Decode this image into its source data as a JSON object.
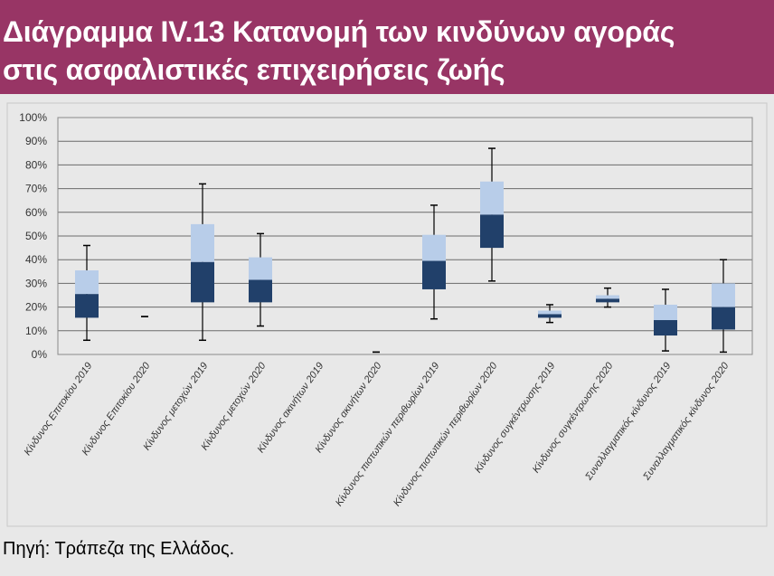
{
  "title": {
    "line1": "Διάγραμμα IV.13 Κατανομή των κινδύνων αγοράς",
    "line2": "στις ασφαλιστικές επιχειρήσεις ζωής"
  },
  "source": "Πηγή: Τράπεζα της Ελλάδος.",
  "colors": {
    "title_band": "#983565",
    "upper_box": "#b8cde9",
    "lower_box": "#21406a",
    "whisker": "#000000",
    "grid": "#6b6b6b",
    "plot_border": "#8a8a8a"
  },
  "chart_data": {
    "type": "boxplot",
    "ylim": [
      0,
      100
    ],
    "yticks": [
      "0%",
      "10%",
      "20%",
      "30%",
      "40%",
      "50%",
      "60%",
      "70%",
      "80%",
      "90%",
      "100%"
    ],
    "grid": true,
    "categories": [
      "Κίνδυνος Επιτοκίου 2019",
      "Κίνδυνος Επιτοκίου 2020",
      "Κίνδυνος μετοχών 2019",
      "Κίνδυνος μετοχών 2020",
      "Κίνδυνος ακινήτων 2019",
      "Κίνδυνος ακινήτων 2020",
      "Κίνδυνος πιστωτικών περιθωρίων 2019",
      "Κίνδυνος πιστωτικών περιθωρίων 2020",
      "Κίνδυνος συγκέντρωσης 2019",
      "Κίνδυνος συγκέντρωσης 2020",
      "Συναλλαγματικός κίνδυνος 2019",
      "Συναλλαγματικός κίνδυνος 2020"
    ],
    "boxes": [
      {
        "min": 6,
        "q1": 15.5,
        "median": 25.5,
        "q3": 35.5,
        "max": 46
      },
      {
        "min": 16,
        "q1": 16,
        "median": 16,
        "q3": 16,
        "max": 16
      },
      {
        "min": 6,
        "q1": 22,
        "median": 39,
        "q3": 55,
        "max": 72
      },
      {
        "min": 12,
        "q1": 22,
        "median": 31.5,
        "q3": 41,
        "max": 51
      },
      null,
      {
        "min": 1,
        "q1": 1,
        "median": 1,
        "q3": 1,
        "max": 1
      },
      {
        "min": 15,
        "q1": 27.5,
        "median": 39.5,
        "q3": 50.5,
        "max": 63
      },
      {
        "min": 31,
        "q1": 45,
        "median": 59,
        "q3": 73,
        "max": 87
      },
      {
        "min": 13.5,
        "q1": 15.5,
        "median": 17,
        "q3": 18.5,
        "max": 21
      },
      {
        "min": 20,
        "q1": 22,
        "median": 23.5,
        "q3": 25,
        "max": 28
      },
      {
        "min": 1.5,
        "q1": 8,
        "median": 14.5,
        "q3": 21,
        "max": 27.5
      },
      {
        "min": 1,
        "q1": 10.5,
        "median": 20,
        "q3": 30,
        "max": 40
      }
    ]
  }
}
